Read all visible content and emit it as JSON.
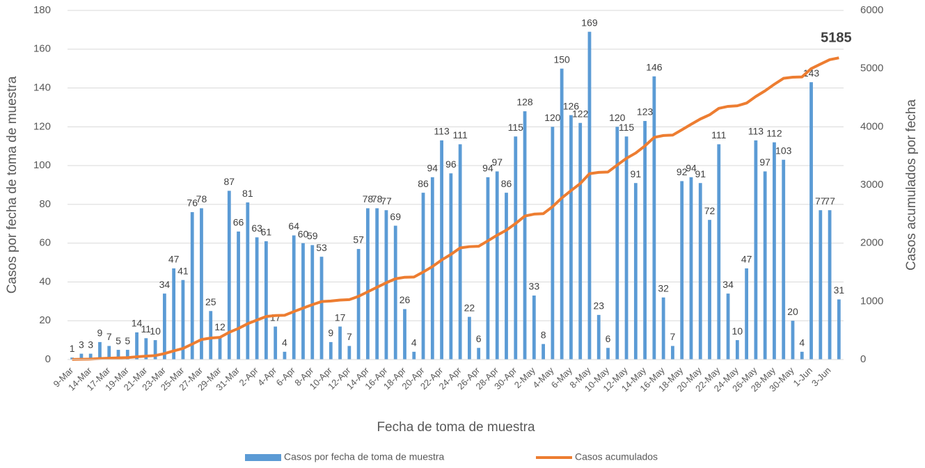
{
  "chart_data": {
    "type": "bar",
    "x_label": "Fecha de toma de muestra",
    "y_label": "Casos por fecha de toma de muestra",
    "y2_label": "Casos acumulados por fecha",
    "categories": [
      "9-Mar",
      null,
      "14-Mar",
      null,
      "17-Mar",
      null,
      "19-Mar",
      null,
      "21-Mar",
      null,
      "23-Mar",
      null,
      "25-Mar",
      null,
      "27-Mar",
      null,
      "29-Mar",
      null,
      "31-Mar",
      null,
      "2-Apr",
      null,
      "4-Apr",
      null,
      "6-Apr",
      null,
      "8-Apr",
      null,
      "10-Apr",
      null,
      "12-Apr",
      null,
      "14-Apr",
      null,
      "16-Apr",
      null,
      "18-Apr",
      null,
      "20-Apr",
      null,
      "22-Apr",
      null,
      "24-Apr",
      null,
      "26-Apr",
      null,
      "28-Apr",
      null,
      "30-Apr",
      null,
      "2-May",
      null,
      "4-May",
      null,
      "6-May",
      null,
      "8-May",
      null,
      "10-May",
      null,
      "12-May",
      null,
      "14-May",
      null,
      "16-May",
      null,
      "18-May",
      null,
      "20-May",
      null,
      "22-May",
      null,
      "24-May",
      null,
      "26-May",
      null,
      "28-May",
      null,
      "30-May",
      null,
      "1-Jun",
      null,
      "3-Jun",
      null
    ],
    "series": [
      {
        "name": "Casos por fecha de toma de muestra",
        "color": "#5b9bd5",
        "values": [
          1,
          3,
          3,
          9,
          7,
          5,
          5,
          14,
          11,
          10,
          34,
          47,
          41,
          76,
          78,
          25,
          12,
          87,
          66,
          81,
          63,
          61,
          17,
          4,
          64,
          60,
          59,
          53,
          9,
          17,
          7,
          57,
          78,
          78,
          77,
          69,
          26,
          4,
          86,
          94,
          113,
          96,
          111,
          22,
          6,
          94,
          97,
          86,
          115,
          128,
          33,
          8,
          120,
          150,
          126,
          122,
          169,
          23,
          6,
          120,
          115,
          91,
          123,
          146,
          32,
          7,
          92,
          94,
          91,
          72,
          111,
          34,
          10,
          47,
          113,
          97,
          112,
          103,
          20,
          4,
          143,
          77,
          77,
          31
        ]
      },
      {
        "name": "Casos acumulados",
        "color": "#ed7d31",
        "type": "line",
        "axis": "y2",
        "values": [
          1,
          4,
          7,
          16,
          23,
          28,
          33,
          47,
          58,
          68,
          102,
          149,
          190,
          266,
          344,
          369,
          381,
          468,
          534,
          615,
          678,
          739,
          756,
          760,
          824,
          884,
          943,
          996,
          1005,
          1022,
          1029,
          1086,
          1164,
          1242,
          1319,
          1388,
          1414,
          1418,
          1504,
          1598,
          1711,
          1807,
          1918,
          1940,
          1946,
          2040,
          2137,
          2223,
          2338,
          2466,
          2499,
          2507,
          2627,
          2777,
          2903,
          3025,
          3194,
          3217,
          3223,
          3343,
          3458,
          3549,
          3672,
          3818,
          3850,
          3857,
          3949,
          4043,
          4134,
          4206,
          4317,
          4351,
          4361,
          4408,
          4521,
          4618,
          4730,
          4833,
          4853,
          4857,
          5000,
          5077,
          5154,
          5185
        ]
      }
    ],
    "ylim": [
      0,
      180
    ],
    "yticks": [
      0,
      20,
      40,
      60,
      80,
      100,
      120,
      140,
      160,
      180
    ],
    "y2lim": [
      0,
      6000
    ],
    "y2ticks": [
      0,
      1000,
      2000,
      3000,
      4000,
      5000,
      6000
    ],
    "grid": true,
    "legend": "bottom"
  }
}
